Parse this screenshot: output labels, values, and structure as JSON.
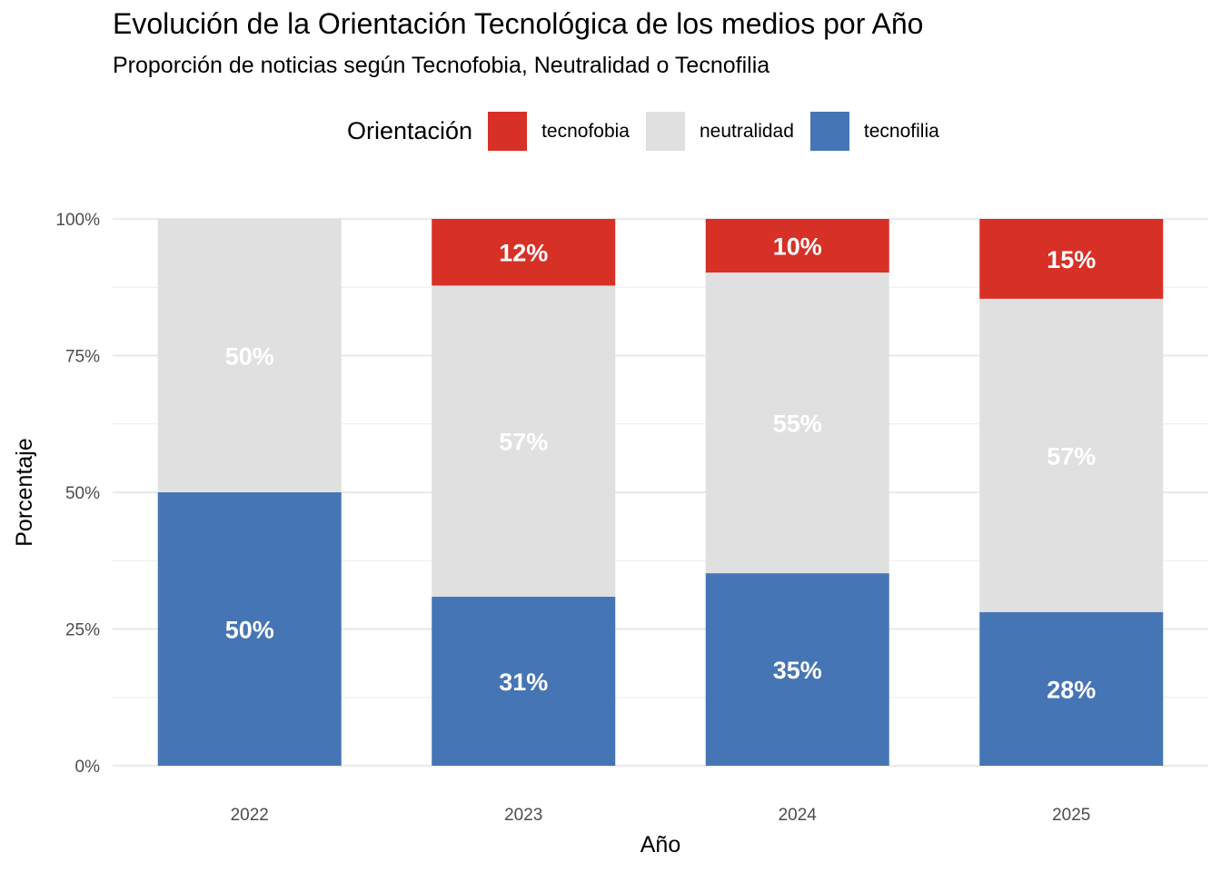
{
  "chart_data": {
    "type": "bar",
    "stacked": true,
    "title": "Evolución de la Orientación Tecnológica de los medios por Año",
    "subtitle": "Proporción de noticias según Tecnofobia, Neutralidad o Tecnofilia",
    "xlabel": "Año",
    "ylabel": "Porcentaje",
    "ylim": [
      0,
      100
    ],
    "yticks": [
      0,
      25,
      50,
      75,
      100
    ],
    "ytick_labels": [
      "0%",
      "25%",
      "50%",
      "75%",
      "100%"
    ],
    "grid": true,
    "legend": {
      "title": "Orientación",
      "position": "top",
      "entries": [
        "tecnofobia",
        "neutralidad",
        "tecnofilia"
      ]
    },
    "categories": [
      "2022",
      "2023",
      "2024",
      "2025"
    ],
    "series": [
      {
        "name": "tecnofobia",
        "color": "#d73027",
        "values": [
          0,
          12.2,
          9.8,
          14.6
        ],
        "labels": [
          "",
          "12%",
          "10%",
          "15%"
        ]
      },
      {
        "name": "neutralidad",
        "color": "#e0e0e0",
        "values": [
          50,
          56.9,
          55.0,
          57.3
        ],
        "labels": [
          "50%",
          "57%",
          "55%",
          "57%"
        ]
      },
      {
        "name": "tecnofilia",
        "color": "#4575b4",
        "values": [
          50,
          30.9,
          35.2,
          28.1
        ],
        "labels": [
          "50%",
          "31%",
          "35%",
          "28%"
        ]
      }
    ]
  }
}
